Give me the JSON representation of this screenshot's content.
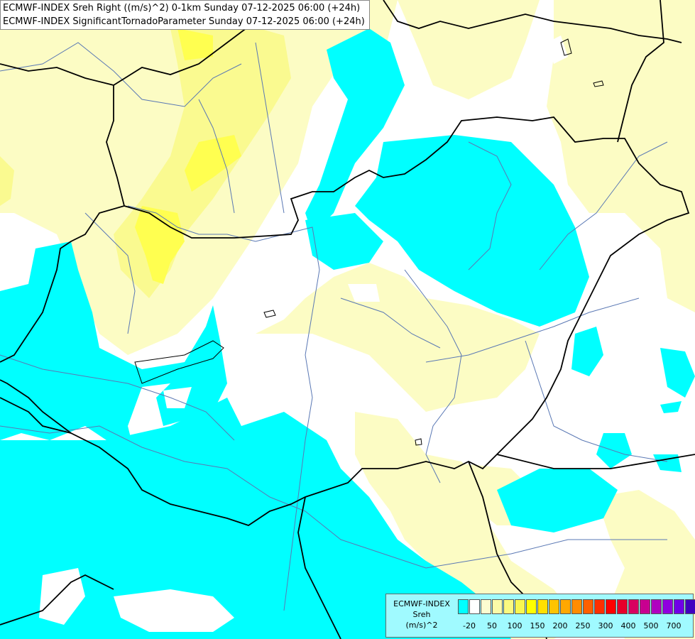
{
  "header": {
    "line1": "ECMWF-INDEX Sreh Right ((m/s)^2) 0-1km Sunday 07-12-2025 06:00 (+24h)",
    "line2": "ECMWF-INDEX SignificantTornadoParameter Sunday 07-12-2025 06:00 (+24h)"
  },
  "legend": {
    "title": [
      "ECMWF-INDEX",
      "Sreh",
      "(m/s)^2"
    ],
    "colors": [
      "#00ffff",
      "#ffffff",
      "#fdfdd0",
      "#fbfba8",
      "#fafa80",
      "#f8f850",
      "#ffff00",
      "#ffe000",
      "#ffc400",
      "#ffa800",
      "#ff8c00",
      "#ff6000",
      "#ff3000",
      "#ff0000",
      "#e8002a",
      "#d80060",
      "#c80090",
      "#b000c0",
      "#9000e0",
      "#7000e8",
      "#4000c0",
      "#200090",
      "#000070"
    ],
    "ticks": [
      "-20",
      "50",
      "100",
      "150",
      "200",
      "250",
      "300",
      "400",
      "500",
      "700"
    ]
  },
  "palette": {
    "cyan": "#00ffff",
    "light_yellow": "#fcfcc4",
    "yellow": "#fafa80",
    "bright_yellow": "#ffff40",
    "river": "#5a78b4",
    "border": "#000000"
  }
}
